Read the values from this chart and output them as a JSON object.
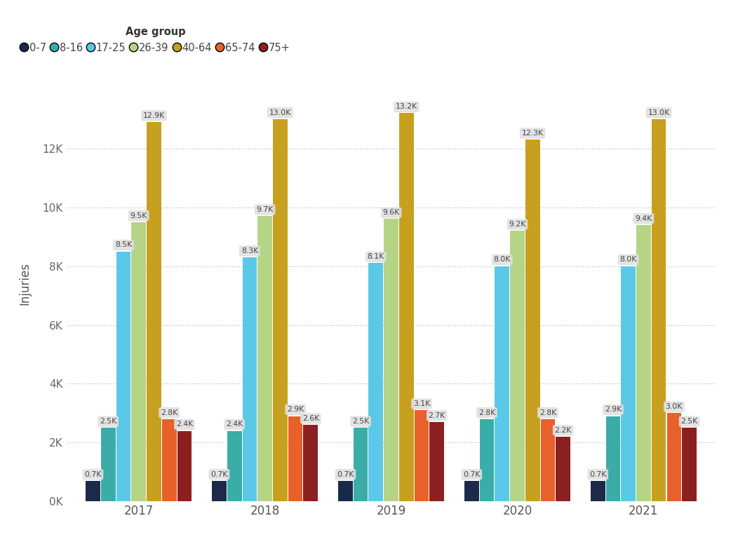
{
  "years": [
    "2017",
    "2018",
    "2019",
    "2020",
    "2021"
  ],
  "age_groups": [
    "0-7",
    "8-16",
    "17-25",
    "26-39",
    "40-64",
    "65-74",
    "75+"
  ],
  "colors": [
    "#1b2a4a",
    "#3aada8",
    "#5bc8e8",
    "#b5d486",
    "#c8a020",
    "#e8602a",
    "#8b2020"
  ],
  "values": {
    "0-7": [
      700,
      700,
      700,
      700,
      700
    ],
    "8-16": [
      2500,
      2400,
      2500,
      2800,
      2900
    ],
    "17-25": [
      8500,
      8300,
      8100,
      8000,
      8000
    ],
    "26-39": [
      9500,
      9700,
      9600,
      9200,
      9400
    ],
    "40-64": [
      12900,
      13000,
      13200,
      12300,
      13000
    ],
    "65-74": [
      2800,
      2900,
      3100,
      2800,
      3000
    ],
    "75+": [
      2400,
      2600,
      2700,
      2200,
      2500
    ]
  },
  "show_labels": {
    "0-7": true,
    "8-16": true,
    "17-25": true,
    "26-39": true,
    "40-64": true,
    "65-74": true,
    "75+": true
  },
  "labels": {
    "0-7": [
      "0.7K",
      "0.7K",
      "0.7K",
      "0.7K",
      "0.7K"
    ],
    "8-16": [
      "2.5K",
      "2.4K",
      "2.5K",
      "2.8K",
      "2.9K"
    ],
    "17-25": [
      "8.5K",
      "8.3K",
      "8.1K",
      "8.0K",
      "8.0K"
    ],
    "26-39": [
      "9.5K",
      "9.7K",
      "9.6K",
      "9.2K",
      "9.4K"
    ],
    "40-64": [
      "12.9K",
      "13.0K",
      "13.2K",
      "12.3K",
      "13.0K"
    ],
    "65-74": [
      "2.8K",
      "2.9K",
      "3.1K",
      "2.8K",
      "3.0K"
    ],
    "75+": [
      "2.4K",
      "2.6K",
      "2.7K",
      "2.2K",
      "2.5K"
    ]
  },
  "ylabel": "Injuries",
  "ytick_labels": [
    "0K",
    "2K",
    "4K",
    "6K",
    "8K",
    "10K",
    "12K"
  ],
  "ytick_values": [
    0,
    2000,
    4000,
    6000,
    8000,
    10000,
    12000
  ],
  "ylim": [
    0,
    14800
  ],
  "background_color": "#ffffff",
  "bar_width": 0.115,
  "legend_title": "Age group"
}
